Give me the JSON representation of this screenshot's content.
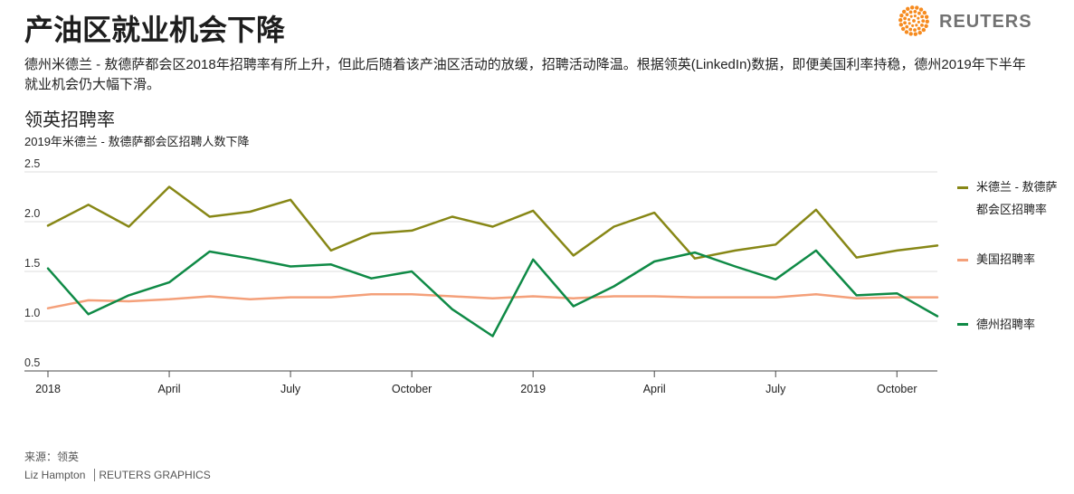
{
  "header": {
    "title": "产油区就业机会下降",
    "description": "德州米德兰 - 敖德萨都会区2018年招聘率有所上升，但此后随着该产油区活动的放缓，招聘活动降温。根据领英(LinkedIn)数据，即便美国利率持稳，德州2019年下半年就业机会仍大幅下滑。"
  },
  "brand": {
    "name": "REUTERS",
    "logo_icon": "reuters-dot-logo-icon",
    "color": "#f68b1f"
  },
  "chart_data": {
    "type": "line",
    "title": "领英招聘率",
    "subtitle": "2019年米德兰 - 敖德萨都会区招聘人数下降",
    "x": [
      "2018-01",
      "2018-02",
      "2018-03",
      "2018-04",
      "2018-05",
      "2018-06",
      "2018-07",
      "2018-08",
      "2018-09",
      "2018-10",
      "2018-11",
      "2018-12",
      "2019-01",
      "2019-02",
      "2019-03",
      "2019-04",
      "2019-05",
      "2019-06",
      "2019-07",
      "2019-08",
      "2019-09",
      "2019-10",
      "2019-11"
    ],
    "x_ticks": [
      {
        "x": "2018-01",
        "label": "2018"
      },
      {
        "x": "2018-04",
        "label": "April"
      },
      {
        "x": "2018-07",
        "label": "July"
      },
      {
        "x": "2018-10",
        "label": "October"
      },
      {
        "x": "2019-01",
        "label": "2019"
      },
      {
        "x": "2019-04",
        "label": "April"
      },
      {
        "x": "2019-07",
        "label": "July"
      },
      {
        "x": "2019-10",
        "label": "October"
      }
    ],
    "y_ticks": [
      {
        "y": 0.5,
        "label": "0.5"
      },
      {
        "y": 1.0,
        "label": "1.0"
      },
      {
        "y": 1.5,
        "label": "1.5"
      },
      {
        "y": 2.0,
        "label": "2.0"
      },
      {
        "y": 2.5,
        "label": "2.5"
      }
    ],
    "ylim": [
      0.5,
      2.5
    ],
    "grid": true,
    "legend_position": "right",
    "series": [
      {
        "name": "米德兰 - 敖德萨都会区招聘率",
        "color": "#878716",
        "values": [
          1.96,
          2.17,
          1.95,
          2.35,
          2.05,
          2.1,
          2.22,
          1.71,
          1.88,
          1.91,
          2.05,
          1.95,
          2.11,
          1.66,
          1.95,
          2.09,
          1.63,
          1.71,
          1.77,
          2.12,
          1.64,
          1.71,
          1.76
        ]
      },
      {
        "name": "美国招聘率",
        "color": "#f4a07a",
        "values": [
          1.13,
          1.21,
          1.2,
          1.22,
          1.25,
          1.22,
          1.24,
          1.24,
          1.27,
          1.27,
          1.25,
          1.23,
          1.25,
          1.23,
          1.25,
          1.25,
          1.24,
          1.24,
          1.24,
          1.27,
          1.23,
          1.24,
          1.24
        ]
      },
      {
        "name": "德州招聘率",
        "color": "#0f8a46",
        "values": [
          1.53,
          1.07,
          1.26,
          1.39,
          1.7,
          1.63,
          1.55,
          1.57,
          1.43,
          1.5,
          1.12,
          0.85,
          1.62,
          1.15,
          1.35,
          1.6,
          1.69,
          1.55,
          1.42,
          1.71,
          1.26,
          1.28,
          1.05
        ]
      }
    ]
  },
  "footer": {
    "source": "来源：领英",
    "author": "Liz Hampton",
    "org": "REUTERS GRAPHICS"
  }
}
